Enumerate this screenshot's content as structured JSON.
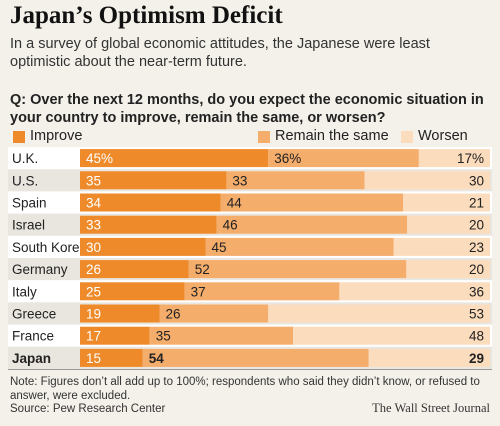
{
  "title": "Japan’s Optimism Deficit",
  "subtitle": "In a survey of global economic attitudes, the Japanese were least optimistic about the near-term future.",
  "question": "Q: Over the next 12 months, do you expect the economic situation in your country to improve, remain the same, or worsen?",
  "note": "Note: Figures don’t all add up to 100%; respondents who said they didn’t know, or refused to answer, were excluded.",
  "source": "Source: Pew Research Center",
  "credit": "The Wall Street Journal",
  "colors": {
    "improve": "#ee8a2a",
    "same": "#f4ad6b",
    "worsen": "#fbdcbd",
    "row_bg": "#ffffff",
    "row_alt": "#e9e6df"
  },
  "chart_data": {
    "type": "bar",
    "stacked": true,
    "orientation": "horizontal",
    "categories": [
      "U.K.",
      "U.S.",
      "Spain",
      "Israel",
      "South Korea",
      "Germany",
      "Italy",
      "Greece",
      "France",
      "Japan"
    ],
    "highlight": "Japan",
    "series": [
      {
        "name": "Improve",
        "values": [
          45,
          35,
          34,
          33,
          30,
          26,
          25,
          19,
          17,
          15
        ]
      },
      {
        "name": "Remain the same",
        "values": [
          36,
          33,
          44,
          46,
          45,
          52,
          37,
          26,
          35,
          54
        ]
      },
      {
        "name": "Worsen",
        "values": [
          17,
          30,
          21,
          20,
          23,
          20,
          36,
          53,
          48,
          29
        ]
      }
    ],
    "value_labels": [
      [
        "45%",
        "36%",
        "17%"
      ],
      [
        "35",
        "33",
        "30"
      ],
      [
        "34",
        "44",
        "21"
      ],
      [
        "33",
        "46",
        "20"
      ],
      [
        "30",
        "45",
        "23"
      ],
      [
        "26",
        "52",
        "20"
      ],
      [
        "25",
        "37",
        "36"
      ],
      [
        "19",
        "26",
        "53"
      ],
      [
        "17",
        "35",
        "48"
      ],
      [
        "15",
        "54",
        "29"
      ]
    ],
    "legend_placement": "top"
  }
}
